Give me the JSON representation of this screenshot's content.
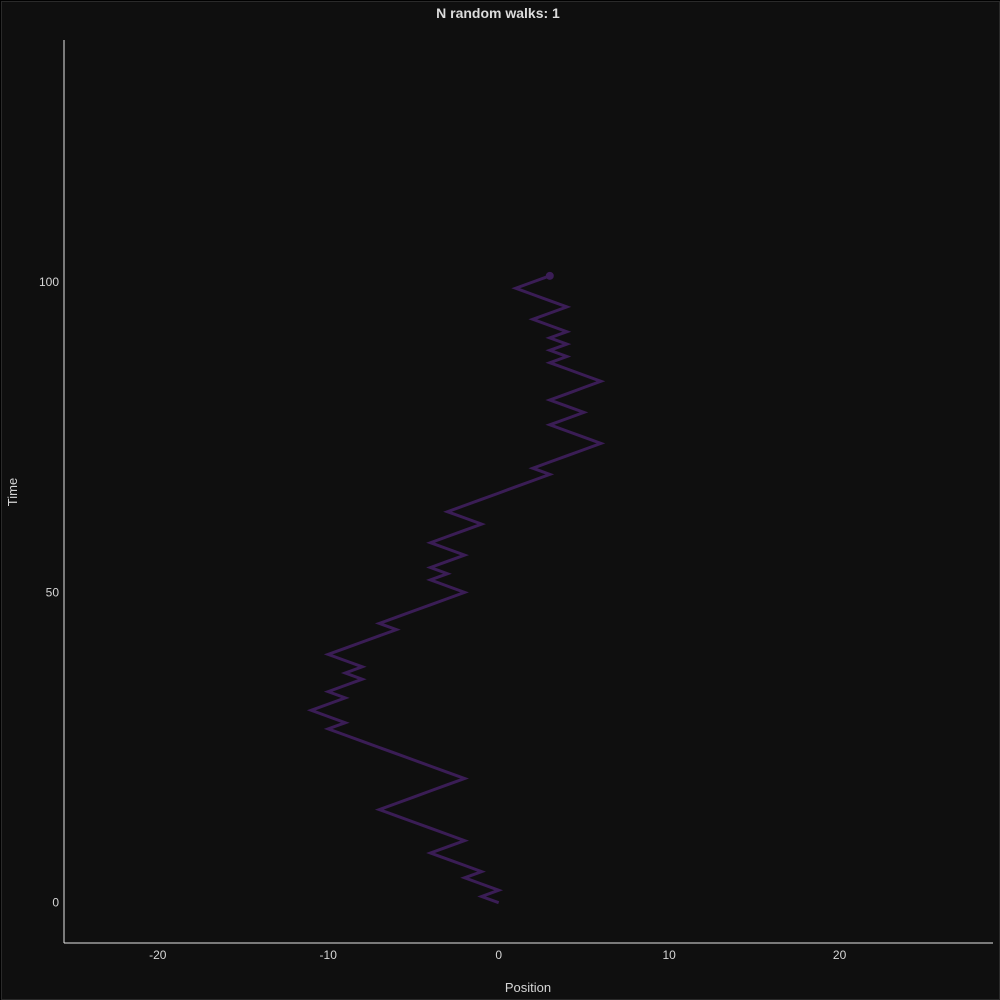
{
  "chart_data": {
    "type": "line",
    "title": "N random walks: 1",
    "xlabel": "Position",
    "ylabel": "Time",
    "xlim": [
      -25.5,
      29
    ],
    "ylim": [
      -6.5,
      139
    ],
    "xticks": [
      -20,
      -10,
      0,
      10,
      20
    ],
    "yticks": [
      0,
      50,
      100
    ],
    "grid": false,
    "colors": {
      "background": "#0f0f0f",
      "axis": "#e6e6e6",
      "text": "#d6d6d6",
      "series": "#3a1d55"
    },
    "series": [
      {
        "x": [
          0,
          -1,
          0,
          -1,
          -2,
          -1,
          -2,
          -3,
          -4,
          -3,
          -2,
          -3,
          -4,
          -5,
          -6,
          -7,
          -6,
          -5,
          -4,
          -3,
          -2,
          -3,
          -4,
          -5,
          -6,
          -7,
          -8,
          -9,
          -10,
          -9,
          -10,
          -11,
          -10,
          -9,
          -10,
          -9,
          -8,
          -9,
          -8,
          -9,
          -10,
          -9,
          -8,
          -7,
          -6,
          -7,
          -6,
          -5,
          -4,
          -3,
          -2,
          -3,
          -4,
          -3,
          -4,
          -3,
          -2,
          -3,
          -4,
          -3,
          -2,
          -1,
          -2,
          -3,
          -2,
          -1,
          0,
          1,
          2,
          3,
          2,
          3,
          4,
          5,
          6,
          5,
          4,
          3,
          4,
          5,
          4,
          3,
          4,
          5,
          6,
          5,
          4,
          3,
          4,
          3,
          4,
          3,
          4,
          3,
          2,
          3,
          4,
          3,
          2,
          1,
          2,
          3
        ],
        "y": [
          0,
          1,
          2,
          3,
          4,
          5,
          6,
          7,
          8,
          9,
          10,
          11,
          12,
          13,
          14,
          15,
          16,
          17,
          18,
          19,
          20,
          21,
          22,
          23,
          24,
          25,
          26,
          27,
          28,
          29,
          30,
          31,
          32,
          33,
          34,
          35,
          36,
          37,
          38,
          39,
          40,
          41,
          42,
          43,
          44,
          45,
          46,
          47,
          48,
          49,
          50,
          51,
          52,
          53,
          54,
          55,
          56,
          57,
          58,
          59,
          60,
          61,
          62,
          63,
          64,
          65,
          66,
          67,
          68,
          69,
          70,
          71,
          72,
          73,
          74,
          75,
          76,
          77,
          78,
          79,
          80,
          81,
          82,
          83,
          84,
          85,
          86,
          87,
          88,
          89,
          90,
          91,
          92,
          93,
          94,
          95,
          96,
          97,
          98,
          99,
          100,
          101
        ]
      }
    ]
  }
}
